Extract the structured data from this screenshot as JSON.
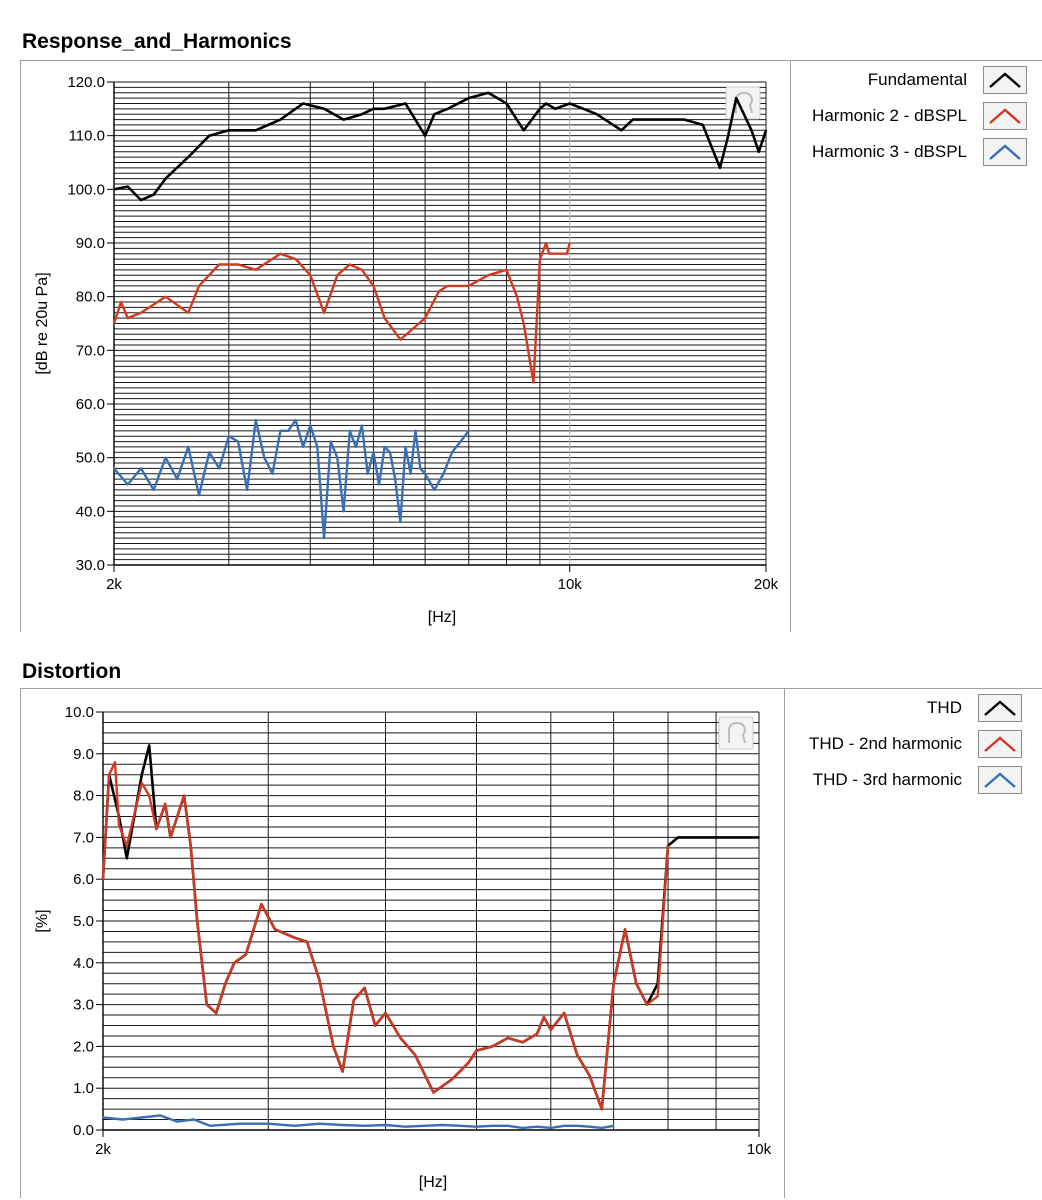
{
  "chart_data": [
    {
      "type": "line",
      "title": "Response_and_Harmonics",
      "xlabel": "[Hz]",
      "ylabel": "[dB re 20u Pa]",
      "xscale": "log",
      "xlim": [
        2000,
        20000
      ],
      "ylim": [
        30,
        120
      ],
      "x_tick_labels": [
        {
          "value": 2000,
          "label": "2k"
        },
        {
          "value": 10000,
          "label": "10k"
        },
        {
          "value": 20000,
          "label": "20k"
        }
      ],
      "y_tick_labels": [
        "30.0",
        "40.0",
        "50.0",
        "60.0",
        "70.0",
        "80.0",
        "90.0",
        "100.0",
        "110.0",
        "120.0"
      ],
      "grid": true,
      "legend_position": "right",
      "series": [
        {
          "name": "Fundamental",
          "color": "#000000",
          "x": [
            2000,
            2100,
            2200,
            2300,
            2400,
            2600,
            2800,
            3000,
            3300,
            3600,
            3900,
            4200,
            4500,
            4800,
            5000,
            5200,
            5600,
            6000,
            6200,
            6500,
            7000,
            7500,
            8000,
            8500,
            9000,
            9200,
            9500,
            10000,
            10500,
            11000,
            12000,
            12500,
            13000,
            14000,
            15000,
            16000,
            17000,
            17500,
            18000,
            18500,
            19000,
            19500,
            20000
          ],
          "y": [
            100,
            100.5,
            98,
            99,
            102,
            106,
            110,
            111,
            111,
            113,
            116,
            115,
            113,
            114,
            115,
            115,
            116,
            110,
            114,
            115,
            117,
            118,
            116,
            111,
            115,
            116,
            115,
            116,
            115,
            114,
            111,
            113,
            113,
            113,
            113,
            112,
            104,
            110,
            117,
            114,
            111,
            107,
            111
          ]
        },
        {
          "name": "Harmonic 2 - dBSPL",
          "color": "#d13a22",
          "x": [
            2000,
            2050,
            2100,
            2200,
            2400,
            2600,
            2700,
            2900,
            3100,
            3300,
            3600,
            3800,
            4000,
            4200,
            4400,
            4600,
            4800,
            5000,
            5200,
            5500,
            6000,
            6300,
            6500,
            7000,
            7500,
            8000,
            8300,
            8500,
            8800,
            9000,
            9200,
            9300,
            9400,
            9500,
            9700,
            9900,
            10000
          ],
          "y": [
            75,
            79,
            76,
            77,
            80,
            77,
            82,
            86,
            86,
            85,
            88,
            87,
            84,
            77,
            84,
            86,
            85,
            82,
            76,
            72,
            76,
            81,
            82,
            82,
            84,
            85,
            80,
            75,
            64,
            87,
            90,
            88,
            88,
            88,
            88,
            88,
            90
          ]
        },
        {
          "name": "Harmonic 3 - dBSPL",
          "color": "#3a6fb5",
          "x": [
            2000,
            2100,
            2200,
            2300,
            2400,
            2500,
            2600,
            2700,
            2800,
            2900,
            3000,
            3100,
            3200,
            3300,
            3400,
            3500,
            3600,
            3700,
            3800,
            3900,
            4000,
            4100,
            4200,
            4300,
            4400,
            4500,
            4600,
            4700,
            4800,
            4900,
            5000,
            5100,
            5200,
            5300,
            5400,
            5500,
            5600,
            5700,
            5800,
            5900,
            6000,
            6200,
            6400,
            6600,
            6800,
            7000
          ],
          "y": [
            48,
            45,
            48,
            44,
            50,
            46,
            52,
            43,
            51,
            48,
            54,
            53,
            44,
            57,
            50,
            47,
            55,
            55,
            57,
            52,
            56,
            52,
            35,
            53,
            50,
            40,
            55,
            52,
            56,
            47,
            51,
            45,
            52,
            51,
            46,
            38,
            52,
            47,
            55,
            48,
            47,
            44,
            47,
            51,
            53,
            55
          ]
        }
      ]
    },
    {
      "type": "line",
      "title": "Distortion",
      "xlabel": "[Hz]",
      "ylabel": "[%]",
      "xscale": "log",
      "xlim": [
        2000,
        10000
      ],
      "ylim": [
        0,
        10
      ],
      "x_tick_labels": [
        {
          "value": 2000,
          "label": "2k"
        },
        {
          "value": 10000,
          "label": "10k"
        }
      ],
      "y_tick_labels": [
        "0.0",
        "1.0",
        "2.0",
        "3.0",
        "4.0",
        "5.0",
        "6.0",
        "7.0",
        "8.0",
        "9.0",
        "10.0"
      ],
      "grid": true,
      "legend_position": "right",
      "series": [
        {
          "name": "THD",
          "color": "#000000",
          "x": [
            2000,
            2030,
            2080,
            2120,
            2200,
            2240,
            2280,
            2330,
            2360,
            2400,
            2440,
            2480,
            2520,
            2580,
            2640,
            2700,
            2760,
            2840,
            2950,
            3050,
            3200,
            3300,
            3400,
            3520,
            3600,
            3700,
            3800,
            3900,
            4000,
            4150,
            4300,
            4500,
            4700,
            4800,
            4900,
            5000,
            5200,
            5400,
            5600,
            5800,
            5900,
            6000,
            6200,
            6400,
            6600,
            6800,
            7000,
            7200,
            7400,
            7600,
            7800,
            8000,
            8200,
            8400,
            8500,
            8700,
            8800,
            8900,
            9100,
            9300,
            9500,
            9700,
            9800,
            9900,
            10000
          ],
          "y": [
            6.0,
            8.5,
            7.5,
            6.5,
            8.5,
            9.2,
            7.2,
            7.8,
            7.0,
            7.5,
            8.0,
            6.8,
            5.0,
            3.0,
            2.8,
            3.5,
            4.0,
            4.2,
            5.4,
            4.8,
            4.6,
            4.5,
            3.6,
            2.0,
            1.4,
            3.1,
            3.4,
            2.5,
            2.8,
            2.2,
            1.8,
            0.9,
            1.2,
            1.4,
            1.6,
            1.9,
            2.0,
            2.2,
            2.1,
            2.3,
            2.7,
            2.4,
            2.8,
            1.8,
            1.3,
            0.5,
            3.5,
            4.8,
            3.5,
            3.0,
            3.5,
            6.8,
            7.0,
            7.0,
            7.0,
            7.0,
            7.0,
            7.0,
            7.0,
            7.0,
            7.0,
            7.0,
            7.0,
            7.0,
            7.0
          ]
        },
        {
          "name": "THD - 2nd harmonic",
          "color": "#d13a22",
          "x": [
            2000,
            2030,
            2060,
            2080,
            2120,
            2200,
            2240,
            2280,
            2330,
            2360,
            2400,
            2440,
            2480,
            2520,
            2580,
            2640,
            2700,
            2760,
            2840,
            2950,
            3050,
            3200,
            3300,
            3400,
            3520,
            3600,
            3700,
            3800,
            3900,
            4000,
            4150,
            4300,
            4500,
            4700,
            4800,
            4900,
            5000,
            5200,
            5400,
            5600,
            5800,
            5900,
            6000,
            6200,
            6400,
            6600,
            6800,
            7000,
            7200,
            7400,
            7600,
            7800,
            8000
          ],
          "y": [
            6.0,
            8.5,
            8.8,
            7.3,
            6.8,
            8.3,
            8.0,
            7.2,
            7.8,
            7.0,
            7.5,
            8.0,
            6.8,
            5.0,
            3.0,
            2.8,
            3.5,
            4.0,
            4.2,
            5.4,
            4.8,
            4.6,
            4.5,
            3.6,
            2.0,
            1.4,
            3.1,
            3.4,
            2.5,
            2.8,
            2.2,
            1.8,
            0.9,
            1.2,
            1.4,
            1.6,
            1.9,
            2.0,
            2.2,
            2.1,
            2.3,
            2.7,
            2.4,
            2.8,
            1.8,
            1.3,
            0.5,
            3.5,
            4.8,
            3.5,
            3.0,
            3.2,
            6.8
          ]
        },
        {
          "name": "THD - 3rd harmonic",
          "color": "#3a6fb5",
          "x": [
            2000,
            2100,
            2200,
            2300,
            2400,
            2500,
            2600,
            2800,
            3000,
            3200,
            3400,
            3600,
            3800,
            4000,
            4200,
            4400,
            4600,
            4800,
            5000,
            5200,
            5400,
            5600,
            5800,
            6000,
            6200,
            6400,
            6600,
            6800,
            7000
          ],
          "y": [
            0.3,
            0.25,
            0.3,
            0.35,
            0.2,
            0.25,
            0.1,
            0.15,
            0.15,
            0.1,
            0.15,
            0.12,
            0.1,
            0.12,
            0.08,
            0.1,
            0.12,
            0.1,
            0.08,
            0.1,
            0.1,
            0.05,
            0.08,
            0.05,
            0.1,
            0.1,
            0.08,
            0.05,
            0.1
          ]
        }
      ]
    }
  ]
}
